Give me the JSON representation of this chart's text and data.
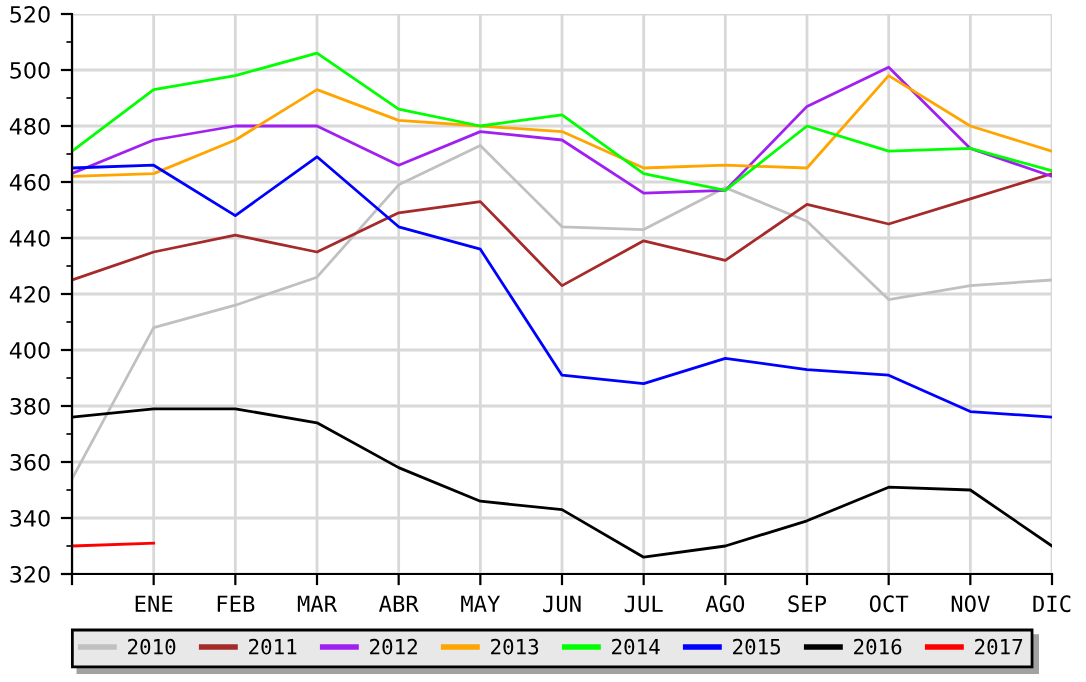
{
  "chart_data": {
    "type": "line",
    "categories": [
      null,
      "ENE",
      "FEB",
      "MAR",
      "ABR",
      "MAY",
      "JUN",
      "JUL",
      "AGO",
      "SEP",
      "OCT",
      "NOV",
      "DIC"
    ],
    "ylim": [
      320,
      520
    ],
    "yticks": [
      320,
      {
        "value": 330,
        "label": null
      },
      340,
      {
        "value": 350,
        "label": null
      },
      360,
      {
        "value": 370,
        "label": null
      },
      380,
      {
        "value": 390,
        "label": null
      },
      400,
      {
        "value": 410,
        "label": null
      },
      420,
      {
        "value": 430,
        "label": null
      },
      440,
      {
        "value": 450,
        "label": null
      },
      460,
      {
        "value": 470,
        "label": null
      },
      480,
      {
        "value": 490,
        "label": null
      },
      500,
      {
        "value": 510,
        "label": null
      },
      520
    ],
    "grid": true,
    "legend": "bottom",
    "marker": "none",
    "line_style": "solid",
    "series": [
      {
        "name": "2010",
        "color": "#c0c0c0",
        "values": [
          354,
          408,
          416,
          426,
          459,
          473,
          444,
          443,
          458,
          446,
          418,
          423,
          425
        ]
      },
      {
        "name": "2011",
        "color": "#a52a2a",
        "values": [
          425,
          435,
          441,
          435,
          449,
          453,
          423,
          439,
          432,
          452,
          445,
          454,
          463
        ]
      },
      {
        "name": "2012",
        "color": "#a020f0",
        "values": [
          463,
          475,
          480,
          480,
          466,
          478,
          475,
          456,
          457,
          487,
          501,
          472,
          462
        ]
      },
      {
        "name": "2013",
        "color": "#ffa500",
        "values": [
          462,
          463,
          475,
          493,
          482,
          480,
          478,
          465,
          466,
          465,
          498,
          480,
          471
        ]
      },
      {
        "name": "2014",
        "color": "#00ff00",
        "values": [
          471,
          493,
          498,
          506,
          486,
          480,
          484,
          463,
          457,
          480,
          471,
          472,
          464
        ]
      },
      {
        "name": "2015",
        "color": "#0000ff",
        "values": [
          465,
          466,
          448,
          469,
          444,
          436,
          391,
          388,
          397,
          393,
          391,
          378,
          376
        ]
      },
      {
        "name": "2016",
        "color": "#000000",
        "values": [
          376,
          379,
          379,
          374,
          358,
          346,
          343,
          326,
          330,
          339,
          351,
          350,
          330
        ]
      },
      {
        "name": "2017",
        "color": "#ff0000",
        "values": [
          330,
          331,
          null,
          null,
          null,
          null,
          null,
          null,
          null,
          null,
          null,
          null,
          null
        ]
      }
    ]
  }
}
